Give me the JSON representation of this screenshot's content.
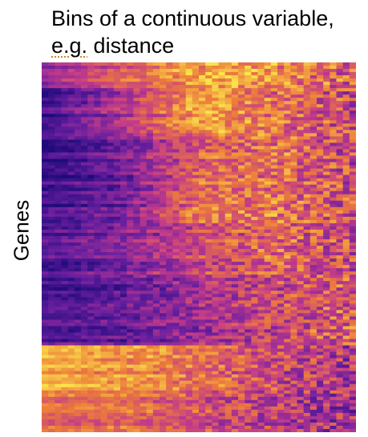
{
  "chart_data": {
    "type": "heatmap",
    "title_part1": "Bins of a continuous variable,",
    "title_part2_underlined": "e.g.",
    "title_part2_rest": " distance",
    "xlabel": "",
    "ylabel": "Genes",
    "colormap": "plasma",
    "colors": {
      "low": "#1e0a7a",
      "mid_low": "#6a1f9f",
      "mid": "#c23b8a",
      "mid_high": "#ec7a3c",
      "high": "#fbe54a"
    },
    "n_columns": 48,
    "n_rows": 115,
    "row_blocks": [
      {
        "rows": [
          0,
          8
        ],
        "profile": [
          0.35,
          0.65,
          0.85,
          0.8,
          0.6
        ]
      },
      {
        "rows": [
          8,
          22
        ],
        "profile": [
          0.1,
          0.45,
          0.85,
          0.7,
          0.55
        ]
      },
      {
        "rows": [
          22,
          35
        ],
        "profile": [
          0.1,
          0.3,
          0.65,
          0.7,
          0.55
        ]
      },
      {
        "rows": [
          35,
          50
        ],
        "profile": [
          0.1,
          0.25,
          0.7,
          0.7,
          0.55
        ]
      },
      {
        "rows": [
          50,
          66
        ],
        "profile": [
          0.15,
          0.3,
          0.55,
          0.65,
          0.55
        ]
      },
      {
        "rows": [
          66,
          76
        ],
        "profile": [
          0.1,
          0.2,
          0.4,
          0.55,
          0.6
        ]
      },
      {
        "rows": [
          76,
          88
        ],
        "profile": [
          0.2,
          0.25,
          0.4,
          0.55,
          0.65
        ]
      },
      {
        "rows": [
          88,
          103
        ],
        "profile": [
          0.85,
          0.8,
          0.7,
          0.55,
          0.45
        ]
      },
      {
        "rows": [
          103,
          115
        ],
        "profile": [
          0.7,
          0.7,
          0.6,
          0.5,
          0.4
        ]
      }
    ]
  }
}
